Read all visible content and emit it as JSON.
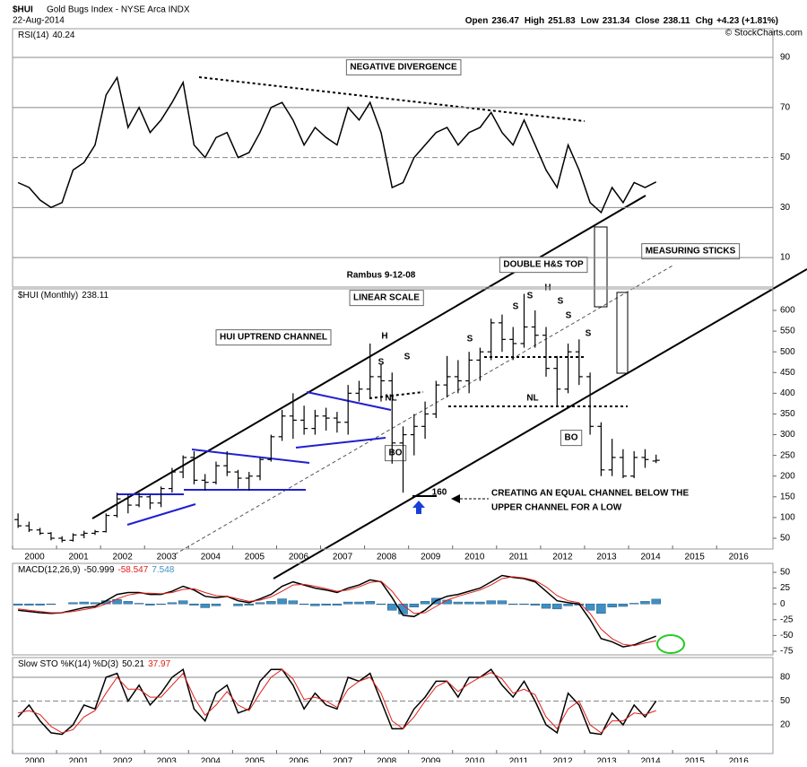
{
  "header": {
    "symbol": "$HUI",
    "name": "Gold Bugs Index - NYSE Arca INDX",
    "date": "22-Aug-2014",
    "labels": [
      "Open",
      "High",
      "Low",
      "Close",
      "Chg"
    ],
    "chg": "+4.23 (+1.81%)",
    "credit": "© StockCharts.com"
  },
  "annotations": [
    "NEGATIVE DIVERGENCE",
    "Rambus 9-12-08",
    "LINEAR SCALE",
    "HUI UPTREND CHANNEL",
    "DOUBLE H&S TOP",
    "MEASURING  STICKS",
    "H",
    "S",
    "S",
    "NL",
    "BO",
    "160",
    "CREATING AN EQUAL CHANNEL BELOW THE",
    "UPPER CHANNEL FOR A LOW",
    "S",
    "S",
    "S",
    "H",
    "S",
    "S",
    "S",
    "NL",
    "BO"
  ],
  "chart_data": [
    {
      "type": "line",
      "title": "RSI(14)",
      "grid": true,
      "xlim": [
        2000,
        2017.28
      ],
      "ylim": [
        -1.8,
        101.5
      ],
      "yticks": [
        10,
        30,
        50,
        70,
        90
      ],
      "x": [
        2000.125,
        2000.375,
        2000.625,
        2000.875,
        2001.125,
        2001.375,
        2001.625,
        2001.875,
        2002.125,
        2002.375,
        2002.625,
        2002.875,
        2003.125,
        2003.375,
        2003.625,
        2003.875,
        2004.125,
        2004.375,
        2004.625,
        2004.875,
        2005.125,
        2005.375,
        2005.625,
        2005.875,
        2006.125,
        2006.375,
        2006.625,
        2006.875,
        2007.125,
        2007.375,
        2007.625,
        2007.875,
        2008.125,
        2008.375,
        2008.625,
        2008.875,
        2009.125,
        2009.375,
        2009.625,
        2009.875,
        2010.125,
        2010.375,
        2010.625,
        2010.875,
        2011.125,
        2011.375,
        2011.625,
        2011.875,
        2012.125,
        2012.375,
        2012.625,
        2012.875,
        2013.125,
        2013.375,
        2013.625,
        2013.875,
        2014.125,
        2014.375,
        2014.625
      ],
      "series": [
        {
          "name": "RSI",
          "color": "#000000",
          "values": [
            40,
            38,
            33,
            30,
            32,
            45,
            48,
            55,
            75,
            82,
            62,
            70,
            60,
            65,
            72,
            80,
            55,
            50,
            58,
            60,
            50,
            52,
            60,
            70,
            72,
            65,
            55,
            62,
            58,
            55,
            70,
            65,
            72,
            60,
            38,
            40,
            50,
            55,
            60,
            62,
            55,
            60,
            62,
            68,
            60,
            55,
            65,
            55,
            45,
            38,
            55,
            45,
            32,
            28,
            38,
            32,
            40,
            38,
            40.24
          ]
        }
      ]
    },
    {
      "type": "ohlc",
      "title": "$HUI (Monthly)",
      "color": "#000000",
      "xlim": [
        2000,
        2017.28
      ],
      "ylim": [
        24,
        652
      ],
      "yticks": [
        50,
        100,
        150,
        200,
        250,
        300,
        350,
        400,
        450,
        500,
        550,
        600
      ],
      "xticks": [
        2000,
        2001,
        2002,
        2003,
        2004,
        2005,
        2006,
        2007,
        2008,
        2009,
        2010,
        2011,
        2012,
        2013,
        2014,
        2015,
        2016
      ],
      "x": [
        2000.125,
        2000.375,
        2000.625,
        2000.875,
        2001.125,
        2001.375,
        2001.625,
        2001.875,
        2002.125,
        2002.375,
        2002.625,
        2002.875,
        2003.125,
        2003.375,
        2003.625,
        2003.875,
        2004.125,
        2004.375,
        2004.625,
        2004.875,
        2005.125,
        2005.375,
        2005.625,
        2005.875,
        2006.125,
        2006.375,
        2006.625,
        2006.875,
        2007.125,
        2007.375,
        2007.625,
        2007.875,
        2008.125,
        2008.375,
        2008.625,
        2008.875,
        2009.125,
        2009.375,
        2009.625,
        2009.875,
        2010.125,
        2010.375,
        2010.625,
        2010.875,
        2011.125,
        2011.375,
        2011.625,
        2011.875,
        2012.125,
        2012.375,
        2012.625,
        2012.875,
        2013.125,
        2013.375,
        2013.625,
        2013.875,
        2014.125,
        2014.375,
        2014.625
      ],
      "open": [
        95,
        80,
        70,
        62,
        50,
        45,
        58,
        62,
        66,
        105,
        145,
        130,
        150,
        135,
        170,
        210,
        245,
        190,
        185,
        225,
        210,
        195,
        200,
        240,
        295,
        345,
        335,
        315,
        345,
        340,
        330,
        400,
        410,
        440,
        430,
        280,
        300,
        320,
        350,
        420,
        440,
        430,
        480,
        500,
        570,
        530,
        520,
        560,
        540,
        460,
        410,
        500,
        440,
        320,
        215,
        245,
        200,
        245,
        236.47
      ],
      "high": [
        110,
        90,
        75,
        65,
        55,
        62,
        68,
        70,
        110,
        160,
        155,
        160,
        155,
        175,
        220,
        250,
        260,
        205,
        235,
        260,
        215,
        210,
        245,
        300,
        360,
        400,
        370,
        360,
        365,
        355,
        420,
        430,
        520,
        470,
        450,
        320,
        350,
        380,
        430,
        490,
        480,
        500,
        510,
        580,
        590,
        560,
        640,
        600,
        560,
        490,
        520,
        530,
        450,
        330,
        290,
        265,
        260,
        265,
        251.83
      ],
      "low": [
        75,
        65,
        58,
        45,
        40,
        42,
        50,
        58,
        64,
        100,
        110,
        125,
        120,
        125,
        160,
        195,
        180,
        165,
        180,
        200,
        170,
        165,
        190,
        235,
        285,
        290,
        300,
        300,
        310,
        305,
        300,
        380,
        390,
        380,
        230,
        160,
        250,
        290,
        340,
        390,
        400,
        400,
        430,
        480,
        500,
        480,
        510,
        510,
        440,
        370,
        400,
        420,
        300,
        200,
        200,
        195,
        195,
        220,
        231.34
      ],
      "close": [
        80,
        70,
        62,
        50,
        45,
        58,
        62,
        66,
        105,
        145,
        130,
        150,
        135,
        170,
        210,
        245,
        190,
        185,
        225,
        210,
        195,
        200,
        240,
        295,
        345,
        335,
        315,
        345,
        340,
        330,
        400,
        410,
        440,
        430,
        280,
        300,
        320,
        350,
        420,
        440,
        430,
        480,
        500,
        570,
        530,
        520,
        560,
        540,
        460,
        410,
        500,
        440,
        320,
        215,
        245,
        200,
        245,
        240,
        238.11
      ]
    },
    {
      "type": "line",
      "title": "MACD(12,26,9)",
      "grid": false,
      "xlim": [
        2000,
        2017.28
      ],
      "ylim": [
        -80.7,
        64.2
      ],
      "yticks": [
        -75,
        -50,
        -25,
        0,
        25,
        50
      ],
      "x": [
        2000.125,
        2000.375,
        2000.625,
        2000.875,
        2001.125,
        2001.375,
        2001.625,
        2001.875,
        2002.125,
        2002.375,
        2002.625,
        2002.875,
        2003.125,
        2003.375,
        2003.625,
        2003.875,
        2004.125,
        2004.375,
        2004.625,
        2004.875,
        2005.125,
        2005.375,
        2005.625,
        2005.875,
        2006.125,
        2006.375,
        2006.625,
        2006.875,
        2007.125,
        2007.375,
        2007.625,
        2007.875,
        2008.125,
        2008.375,
        2008.625,
        2008.875,
        2009.125,
        2009.375,
        2009.625,
        2009.875,
        2010.125,
        2010.375,
        2010.625,
        2010.875,
        2011.125,
        2011.375,
        2011.625,
        2011.875,
        2012.125,
        2012.375,
        2012.625,
        2012.875,
        2013.125,
        2013.375,
        2013.625,
        2013.875,
        2014.125,
        2014.375,
        2014.625
      ],
      "series": [
        {
          "name": "MACD",
          "color": "#000000",
          "style": "line",
          "values": [
            -10,
            -12,
            -14,
            -15,
            -14,
            -10,
            -6,
            -4,
            5,
            15,
            18,
            18,
            15,
            15,
            20,
            28,
            22,
            12,
            10,
            12,
            5,
            2,
            8,
            15,
            28,
            35,
            30,
            25,
            22,
            18,
            25,
            30,
            38,
            35,
            10,
            -18,
            -20,
            -10,
            5,
            12,
            15,
            20,
            25,
            35,
            45,
            42,
            40,
            35,
            20,
            5,
            2,
            0,
            -25,
            -55,
            -60,
            -68,
            -65,
            -58,
            -50.999
          ]
        },
        {
          "name": "Signal",
          "color": "#e0201b",
          "style": "line",
          "values": [
            -8,
            -10,
            -12,
            -14,
            -14,
            -12,
            -9,
            -6,
            0,
            8,
            14,
            17,
            17,
            16,
            18,
            23,
            24,
            18,
            13,
            12,
            8,
            4,
            6,
            11,
            20,
            30,
            31,
            28,
            24,
            20,
            22,
            27,
            34,
            36,
            20,
            -2,
            -15,
            -14,
            -4,
            6,
            12,
            17,
            22,
            30,
            40,
            43,
            41,
            37,
            27,
            13,
            5,
            2,
            -15,
            -40,
            -55,
            -64,
            -66,
            -62,
            -58.547
          ]
        },
        {
          "name": "Histogram",
          "color": "#3f8fc4",
          "style": "histogram",
          "values": [
            -2,
            -2,
            -2,
            -1,
            0,
            2,
            3,
            2,
            5,
            7,
            4,
            1,
            -2,
            -1,
            2,
            5,
            -2,
            -6,
            -3,
            0,
            -3,
            -2,
            2,
            4,
            8,
            5,
            -1,
            -3,
            -2,
            -2,
            3,
            3,
            4,
            -1,
            -10,
            -16,
            -5,
            4,
            9,
            6,
            3,
            3,
            3,
            5,
            5,
            -1,
            -1,
            -2,
            -7,
            -8,
            -3,
            -2,
            -10,
            -15,
            -5,
            -4,
            1,
            4,
            7.548
          ]
        }
      ]
    },
    {
      "type": "line",
      "title": "Slow STO %K(14) %D(3)",
      "grid": true,
      "xlim": [
        2000,
        2017.28
      ],
      "ylim": [
        -16.2,
        104.9
      ],
      "yticks": [
        20,
        50,
        80
      ],
      "xticks": [
        2000,
        2001,
        2002,
        2003,
        2004,
        2005,
        2006,
        2007,
        2008,
        2009,
        2010,
        2011,
        2012,
        2013,
        2014,
        2015,
        2016
      ],
      "x": [
        2000.125,
        2000.375,
        2000.625,
        2000.875,
        2001.125,
        2001.375,
        2001.625,
        2001.875,
        2002.125,
        2002.375,
        2002.625,
        2002.875,
        2003.125,
        2003.375,
        2003.625,
        2003.875,
        2004.125,
        2004.375,
        2004.625,
        2004.875,
        2005.125,
        2005.375,
        2005.625,
        2005.875,
        2006.125,
        2006.375,
        2006.625,
        2006.875,
        2007.125,
        2007.375,
        2007.625,
        2007.875,
        2008.125,
        2008.375,
        2008.625,
        2008.875,
        2009.125,
        2009.375,
        2009.625,
        2009.875,
        2010.125,
        2010.375,
        2010.625,
        2010.875,
        2011.125,
        2011.375,
        2011.625,
        2011.875,
        2012.125,
        2012.375,
        2012.625,
        2012.875,
        2013.125,
        2013.375,
        2013.625,
        2013.875,
        2014.125,
        2014.375,
        2014.625
      ],
      "series": [
        {
          "name": "%K",
          "color": "#000000",
          "style": "line",
          "values": [
            30,
            45,
            25,
            10,
            8,
            20,
            45,
            40,
            80,
            85,
            50,
            70,
            45,
            60,
            80,
            90,
            40,
            25,
            60,
            70,
            35,
            40,
            75,
            90,
            90,
            70,
            40,
            60,
            45,
            40,
            80,
            75,
            85,
            50,
            15,
            15,
            40,
            55,
            75,
            75,
            55,
            80,
            80,
            90,
            70,
            55,
            75,
            50,
            20,
            10,
            60,
            45,
            10,
            8,
            35,
            20,
            45,
            30,
            50.21
          ]
        },
        {
          "name": "%D",
          "color": "#e0201b",
          "style": "line",
          "values": [
            35,
            38,
            33,
            18,
            10,
            14,
            30,
            38,
            60,
            80,
            65,
            65,
            55,
            55,
            70,
            85,
            55,
            32,
            45,
            62,
            45,
            38,
            60,
            80,
            90,
            78,
            52,
            55,
            50,
            42,
            65,
            75,
            80,
            60,
            25,
            15,
            30,
            50,
            68,
            75,
            62,
            72,
            80,
            86,
            78,
            60,
            65,
            58,
            30,
            15,
            40,
            50,
            20,
            10,
            25,
            25,
            35,
            33,
            37.97
          ]
        }
      ]
    }
  ]
}
